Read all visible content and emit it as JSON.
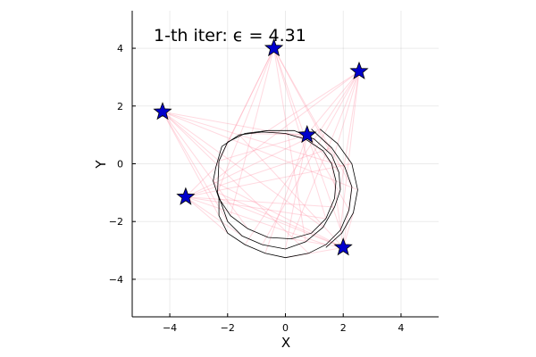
{
  "chart_data": {
    "type": "scatter",
    "title": "1-th iter: ϵ = 4.31",
    "xlabel": "X",
    "ylabel": "Y",
    "xlim": [
      -5.3,
      5.3
    ],
    "ylim": [
      -5.3,
      5.3
    ],
    "xticks": [
      -4,
      -2,
      0,
      2,
      4
    ],
    "xtick_labels": [
      "−4",
      "−2",
      "0",
      "2",
      "4"
    ],
    "yticks": [
      -4,
      -2,
      0,
      2,
      4
    ],
    "ytick_labels": [
      "−4",
      "−2",
      "0",
      "2",
      "4"
    ],
    "grid": true,
    "legend": "none",
    "colors": {
      "points": "#0000cc",
      "couplings": "#ff8aa0",
      "curve": "#000000"
    },
    "points": [
      {
        "x": -0.4,
        "y": 4.0
      },
      {
        "x": 2.55,
        "y": 3.2
      },
      {
        "x": -4.25,
        "y": 1.8
      },
      {
        "x": 0.75,
        "y": 1.0
      },
      {
        "x": -3.45,
        "y": -1.15
      },
      {
        "x": 2.0,
        "y": -2.9
      }
    ],
    "curves": [
      {
        "name": "",
        "x": [
          -2.4,
          -2.2,
          -1.6,
          -0.8,
          0.0,
          0.7,
          1.3,
          1.6,
          1.75,
          1.7,
          1.4,
          0.9,
          0.2,
          -0.6,
          -1.3,
          -1.9,
          -2.3,
          -2.5,
          -2.4
        ],
        "y": [
          -0.1,
          0.6,
          1.0,
          1.1,
          1.05,
          0.85,
          0.45,
          0.0,
          -0.6,
          -1.2,
          -1.9,
          -2.4,
          -2.6,
          -2.55,
          -2.25,
          -1.8,
          -1.2,
          -0.6,
          -0.1
        ]
      },
      {
        "name": "",
        "x": [
          -2.3,
          -2.0,
          -1.4,
          -0.6,
          0.3,
          1.0,
          1.6,
          1.85,
          1.9,
          1.7,
          1.3,
          0.7,
          0.0,
          -0.8,
          -1.5,
          -2.0,
          -2.35,
          -2.3
        ],
        "y": [
          0.1,
          0.75,
          1.05,
          1.15,
          1.15,
          0.85,
          0.3,
          -0.3,
          -0.9,
          -1.5,
          -2.2,
          -2.7,
          -2.95,
          -2.8,
          -2.5,
          -2.0,
          -1.0,
          0.1
        ]
      },
      {
        "name": "",
        "x": [
          0.9,
          1.6,
          2.05,
          2.3,
          2.2,
          1.9,
          1.4,
          0.8,
          0.0,
          -0.7,
          -1.4,
          -2.0,
          -2.3,
          -2.3
        ],
        "y": [
          1.2,
          0.55,
          -0.1,
          -0.8,
          -1.6,
          -2.3,
          -2.8,
          -3.1,
          -3.25,
          -3.1,
          -2.8,
          -2.4,
          -1.8,
          -1.2
        ]
      },
      {
        "name": "",
        "x": [
          1.2,
          1.8,
          2.3,
          2.5,
          2.35,
          1.95,
          1.4
        ],
        "y": [
          1.2,
          0.7,
          0.0,
          -0.9,
          -1.7,
          -2.4,
          -2.9
        ]
      }
    ]
  }
}
